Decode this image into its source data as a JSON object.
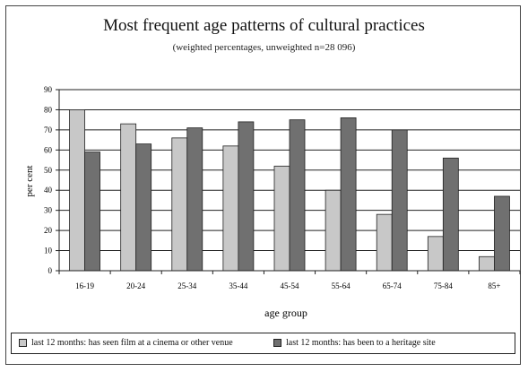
{
  "chart_data": {
    "type": "bar",
    "title": "Most frequent age patterns of cultural practices",
    "subtitle": "(weighted percentages, unweighted n=28 096)",
    "xlabel": "age group",
    "ylabel": "per cent",
    "ylim": [
      0,
      90
    ],
    "yticks": [
      "0",
      "10",
      "20",
      "30",
      "40",
      "50",
      "60",
      "70",
      "80",
      "90"
    ],
    "grid": true,
    "legend_position": "bottom",
    "categories": [
      "16-19",
      "20-24",
      "25-34",
      "35-44",
      "45-54",
      "55-64",
      "65-74",
      "75-84",
      "85+"
    ],
    "series": [
      {
        "name": "last 12 months: has seen film at a cinema or other venue",
        "color": "#c8c8c8",
        "values": [
          80,
          73,
          66,
          62,
          52,
          40,
          28,
          17,
          7
        ]
      },
      {
        "name": "last 12 months: has been to a heritage site",
        "color": "#707070",
        "values": [
          59,
          63,
          71,
          74,
          75,
          76,
          70,
          56,
          37
        ]
      }
    ]
  }
}
